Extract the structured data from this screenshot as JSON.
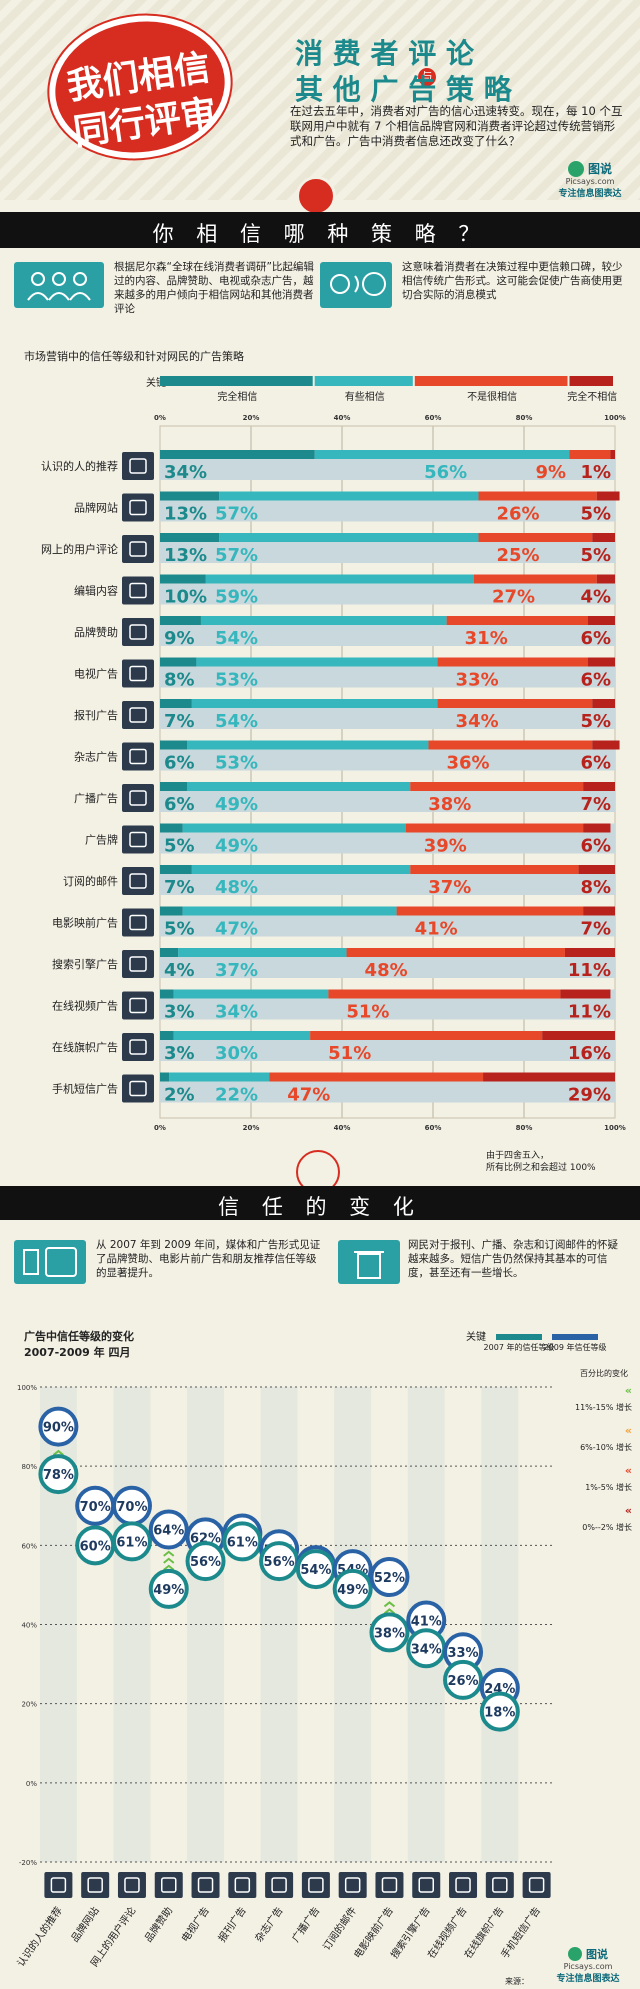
{
  "header": {
    "badge_line1": "我们相信",
    "badge_line2": "同行评审",
    "title_line1": "消 费 者 评 论",
    "connector": "与",
    "title_line2": "其 他 广 告 策 略",
    "intro": "在过去五年中，消费者对广告的信心迅速转变。现在，每 10 个互联网用户中就有 7 个相信品牌官网和消费者评论超过传统营销形式和广告。广告中消费者信息还改变了什么？",
    "logo_name": "图说",
    "logo_site": "Picsays.com",
    "logo_slogan": "专注信息图表达"
  },
  "section1": {
    "title": "你 相 信 哪 种 策 略 ？",
    "left_text": "根据尼尔森“全球在线消费者调研”比起编辑过的内容、品牌赞助、电视或杂志广告，越来越多的用户倾向于相信网站和其他消费者评论",
    "right_text": "这意味着消费者在决策过程中更信赖口碑，较少相信传统广告形式。这可能会促使广告商使用更切合实际的消息模式"
  },
  "chart1_meta": {
    "subtitle": "市场营销中的信任等级和针对网民的广告策略",
    "key_label": "关键",
    "legend": [
      "完全相信",
      "有些相信",
      "不是很相信",
      "完全不相信"
    ],
    "ticks": [
      "0%",
      "20%",
      "40%",
      "60%",
      "80%",
      "100%"
    ],
    "footnote_line1": "由于四舍五入，",
    "footnote_line2": "所有比例之和会超过 100%"
  },
  "section2": {
    "title": "信 任 的 变 化",
    "left_text": "从 2007 年到 2009 年间，媒体和广告形式见证了品牌赞助、电影片前广告和朋友推荐信任等级的显著提升。",
    "right_text": "网民对于报刊、广播、杂志和订阅邮件的怀疑越来越多。短信广告仍然保持其基本的可信度，甚至还有一些增长。"
  },
  "chart2_meta": {
    "title": "广告中信任等级的变化",
    "subtitle": "2007-2009 年 四月",
    "key_label": "关键",
    "legend_2007": "2007 年的信任等级",
    "legend_2009": "2009 年信任等级",
    "change_title": "百分比的变化",
    "change_items": [
      "11%-15% 增长",
      "6%-10% 增长",
      "1%-5% 增长",
      "0%--2% 增长"
    ],
    "yticks": [
      "100%",
      "80%",
      "60%",
      "40%",
      "20%",
      "0%",
      "-20%"
    ]
  },
  "footer": {
    "logo_name": "图说",
    "logo_site": "Picsays.com",
    "logo_slogan": "专注信息图表达",
    "source_label": "来源："
  },
  "colors": {
    "dark_teal": "#1c8a8c",
    "teal": "#35b7bd",
    "orange_red": "#e8482a",
    "dark_red": "#b8221c",
    "banner_red": "#d62d20",
    "blue": "#2a62a6",
    "band": "#111111"
  },
  "chart_data": [
    {
      "type": "bar",
      "orientation": "horizontal-stacked",
      "title": "市场营销中的信任等级和针对网民的广告策略",
      "categories": [
        "认识的人的推荐",
        "品牌网站",
        "网上的用户评论",
        "编辑内容",
        "品牌赞助",
        "电视广告",
        "报刊广告",
        "杂志广告",
        "广播广告",
        "广告牌",
        "订阅的邮件",
        "电影映前广告",
        "搜索引擎广告",
        "在线视频广告",
        "在线旗帜广告",
        "手机短信广告"
      ],
      "series": [
        {
          "name": "完全相信",
          "values": [
            34,
            13,
            13,
            10,
            9,
            8,
            7,
            6,
            6,
            5,
            7,
            5,
            4,
            3,
            3,
            2
          ]
        },
        {
          "name": "有些相信",
          "values": [
            56,
            57,
            57,
            59,
            54,
            53,
            54,
            53,
            49,
            49,
            48,
            47,
            37,
            34,
            30,
            22
          ]
        },
        {
          "name": "不是很相信",
          "values": [
            9,
            26,
            25,
            27,
            31,
            33,
            34,
            36,
            38,
            39,
            37,
            41,
            48,
            51,
            51,
            47
          ]
        },
        {
          "name": "完全不相信",
          "values": [
            1,
            5,
            5,
            4,
            6,
            6,
            5,
            6,
            7,
            6,
            8,
            7,
            11,
            11,
            16,
            29
          ]
        }
      ],
      "xlim": [
        0,
        100
      ]
    },
    {
      "type": "scatter",
      "title": "广告中信任等级的变化",
      "categories": [
        "认识的人的推荐",
        "品牌网站",
        "网上的用户评论",
        "品牌赞助",
        "电视广告",
        "报刊广告",
        "杂志广告",
        "广播广告",
        "订阅的邮件",
        "电影映前广告",
        "搜索引擎广告",
        "在线视频广告",
        "在线旗帜广告",
        "手机短信广告"
      ],
      "series": [
        {
          "name": "2007 年的信任等级",
          "values": [
            78,
            60,
            61,
            49,
            56,
            61,
            56,
            54,
            49,
            38,
            34,
            26,
            18,
            null
          ]
        },
        {
          "name": "2009 年信任等级",
          "values": [
            90,
            70,
            70,
            64,
            62,
            63,
            59,
            55,
            54,
            52,
            41,
            33,
            24,
            null
          ]
        }
      ],
      "ylim": [
        -20,
        100
      ]
    }
  ]
}
